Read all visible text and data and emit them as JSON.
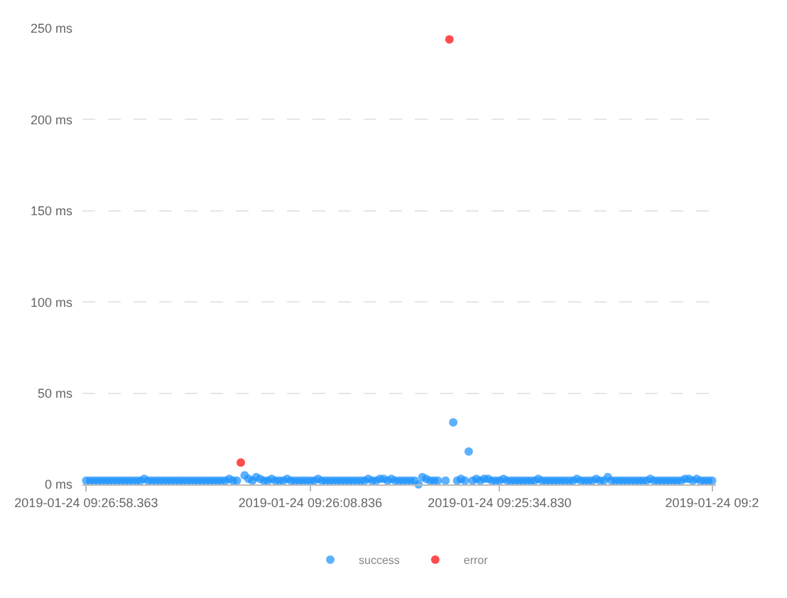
{
  "chart_data": {
    "type": "scatter",
    "categories": [
      "2019-01-24 09:26:58.363",
      null,
      null,
      null,
      null,
      null,
      null,
      null,
      null,
      null,
      null,
      null,
      null,
      null,
      null,
      null,
      null,
      null,
      null,
      null,
      null,
      null,
      null,
      null,
      null,
      null,
      null,
      null,
      null,
      null,
      null,
      null,
      null,
      null,
      null,
      null,
      null,
      null,
      null,
      null,
      null,
      null,
      null,
      null,
      null,
      null,
      null,
      null,
      null,
      null,
      null,
      null,
      null,
      null,
      null,
      null,
      null,
      null,
      "2019-01-24 09:26:08.836",
      null,
      null,
      null,
      null,
      null,
      null,
      null,
      null,
      null,
      null,
      null,
      null,
      null,
      null,
      null,
      null,
      null,
      null,
      null,
      null,
      null,
      null,
      null,
      null,
      null,
      null,
      null,
      null,
      null,
      null,
      null,
      null,
      null,
      null,
      null,
      null,
      null,
      null,
      null,
      null,
      null,
      null,
      null,
      null,
      null,
      null,
      null,
      null,
      "2019-01-24 09:25:34.830",
      null,
      null,
      null,
      null,
      null,
      null,
      null,
      null,
      null,
      null,
      null,
      null,
      null,
      null,
      null,
      null,
      null,
      null,
      null,
      null,
      null,
      null,
      null,
      null,
      null,
      null,
      null,
      null,
      null,
      null,
      null,
      null,
      null,
      null,
      null,
      null,
      null,
      null,
      null,
      null,
      null,
      null,
      null,
      null,
      null,
      null,
      null,
      null,
      null,
      null,
      null,
      null,
      null,
      null,
      "2019-01-24 09:2"
    ],
    "series": [
      {
        "name": "success",
        "color": "#1890ff",
        "values": [
          2,
          2,
          2,
          2,
          2,
          2,
          2,
          2,
          2,
          2,
          2,
          2,
          2,
          2,
          2,
          3,
          2,
          2,
          2,
          2,
          2,
          2,
          2,
          2,
          2,
          2,
          2,
          2,
          2,
          2,
          2,
          2,
          2,
          2,
          2,
          2,
          2,
          3,
          2,
          2,
          null,
          5,
          3,
          2,
          4,
          3,
          2,
          2,
          3,
          2,
          2,
          2,
          3,
          2,
          2,
          2,
          2,
          2,
          2,
          2,
          3,
          2,
          2,
          2,
          2,
          2,
          2,
          2,
          2,
          2,
          2,
          2,
          2,
          3,
          2,
          2,
          3,
          3,
          2,
          3,
          2,
          2,
          2,
          2,
          2,
          2,
          0,
          4,
          3,
          2,
          2,
          2,
          null,
          2,
          null,
          34,
          2,
          3,
          2,
          18,
          2,
          3,
          2,
          3,
          3,
          2,
          2,
          2,
          3,
          2,
          2,
          2,
          2,
          2,
          2,
          2,
          2,
          3,
          2,
          2,
          2,
          2,
          2,
          2,
          2,
          2,
          2,
          3,
          2,
          2,
          2,
          2,
          3,
          2,
          2,
          4,
          2,
          2,
          2,
          2,
          2,
          2,
          2,
          2,
          2,
          2,
          3,
          2,
          2,
          2,
          2,
          2,
          2,
          2,
          2,
          3,
          3,
          2,
          3,
          2,
          2,
          2,
          2
        ]
      },
      {
        "name": "error",
        "color": "#ff0000",
        "values": [
          null,
          null,
          null,
          null,
          null,
          null,
          null,
          null,
          null,
          null,
          null,
          null,
          null,
          null,
          null,
          null,
          null,
          null,
          null,
          null,
          null,
          null,
          null,
          null,
          null,
          null,
          null,
          null,
          null,
          null,
          null,
          null,
          null,
          null,
          null,
          null,
          null,
          null,
          null,
          null,
          12,
          null,
          null,
          null,
          null,
          null,
          null,
          null,
          null,
          null,
          null,
          null,
          null,
          null,
          null,
          null,
          null,
          null,
          null,
          null,
          null,
          null,
          null,
          null,
          null,
          null,
          null,
          null,
          null,
          null,
          null,
          null,
          null,
          null,
          null,
          null,
          null,
          null,
          null,
          null,
          null,
          null,
          null,
          null,
          null,
          null,
          null,
          null,
          null,
          null,
          null,
          null,
          null,
          null,
          244,
          null,
          null,
          null,
          null,
          null,
          null,
          null,
          null,
          null,
          null,
          null,
          null,
          null,
          null,
          null,
          null,
          null,
          null,
          null,
          null,
          null,
          null,
          null,
          null,
          null,
          null,
          null,
          null,
          null,
          null,
          null,
          null,
          null,
          null,
          null,
          null,
          null,
          null,
          null,
          null,
          null,
          null,
          null,
          null,
          null,
          null,
          null,
          null,
          null,
          null,
          null,
          null,
          null,
          null,
          null,
          null,
          null,
          null,
          null,
          null,
          null,
          null,
          null,
          null,
          null,
          null,
          null,
          null
        ]
      }
    ],
    "ylim": [
      0,
      250
    ],
    "yticks": [
      {
        "value": 0,
        "label": "0 ms"
      },
      {
        "value": 50,
        "label": "50 ms"
      },
      {
        "value": 100,
        "label": "100 ms"
      },
      {
        "value": 150,
        "label": "150 ms"
      },
      {
        "value": 200,
        "label": "200 ms"
      },
      {
        "value": 250,
        "label": "250 ms"
      }
    ],
    "grid": "y",
    "legend": "bottom",
    "marker": "circle"
  }
}
